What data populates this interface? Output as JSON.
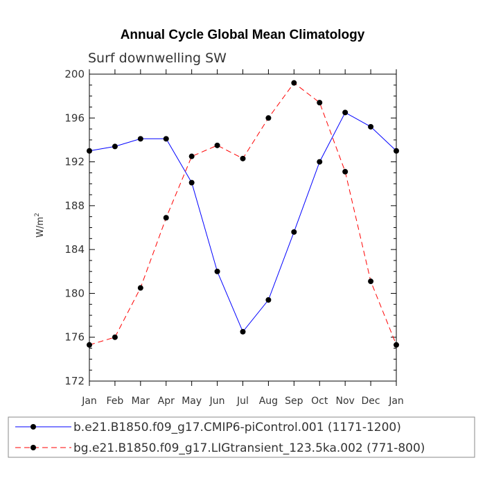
{
  "chart_data": {
    "type": "line",
    "title": "Annual Cycle Global Mean Climatology",
    "subtitle": "Surf downwelling SW",
    "xlabel": "",
    "ylabel": "W/m",
    "ylabel_superscript": "2",
    "categories": [
      "Jan",
      "Feb",
      "Mar",
      "Apr",
      "May",
      "Jun",
      "Jul",
      "Aug",
      "Sep",
      "Oct",
      "Nov",
      "Dec",
      "Jan"
    ],
    "ylim": [
      172,
      200
    ],
    "yticks": [
      172,
      176,
      180,
      184,
      188,
      192,
      196,
      200
    ],
    "y_minor_step": 1,
    "series": [
      {
        "name": "b.e21.B1850.f09_g17.CMIP6-piControl.001 (1171-1200)",
        "color": "#0000ff",
        "dash": "solid",
        "values": [
          193.0,
          193.4,
          194.1,
          194.1,
          190.1,
          182.0,
          176.5,
          179.4,
          185.6,
          192.0,
          196.5,
          195.2,
          193.0
        ]
      },
      {
        "name": "bg.e21.B1850.f09_g17.LIGtransient_123.5ka.002 (771-800)",
        "color": "#ff0000",
        "dash": "dashed",
        "values": [
          175.3,
          176.0,
          180.5,
          186.9,
          192.5,
          193.5,
          192.3,
          196.0,
          199.2,
          197.4,
          191.1,
          181.1,
          175.3
        ]
      }
    ],
    "grid": false,
    "legend_position": "bottom"
  }
}
